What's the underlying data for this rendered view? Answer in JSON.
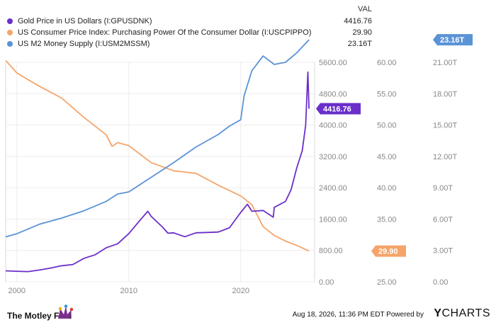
{
  "legend": {
    "header": "VAL",
    "items": [
      {
        "name": "Gold Price in US Dollars (I:GPUSDNK)",
        "value": "4416.76",
        "color": "#6a2fc9"
      },
      {
        "name": "US Consumer Price Index: Purchasing Power Of the Consumer Dollar (I:USCPIPPO)",
        "value": "29.90",
        "color": "#f5a46a"
      },
      {
        "name": "US M2 Money Supply (I:USM2MSSM)",
        "value": "23.16T",
        "color": "#5b93d6"
      }
    ]
  },
  "badges": {
    "gold": "4416.76",
    "cpi": "29.90",
    "m2": "23.16T"
  },
  "axes": {
    "gold": {
      "labels": [
        "0.00",
        "800.00",
        "1600.00",
        "2400.00",
        "3200.00",
        "4000.00",
        "4800.00",
        "5600.00"
      ],
      "values": [
        0,
        800,
        1600,
        2400,
        3200,
        4000,
        4800,
        5600
      ]
    },
    "cpi": {
      "labels": [
        "25.00",
        "30.00",
        "35.00",
        "40.00",
        "45.00",
        "50.00",
        "55.00",
        "60.00"
      ],
      "values": [
        25,
        30,
        35,
        40,
        45,
        50,
        55,
        60
      ]
    },
    "m2": {
      "labels": [
        "0.00",
        "3.00T",
        "6.00T",
        "9.00T",
        "12.00T",
        "15.00T",
        "18.00T",
        "21.00T"
      ],
      "values": [
        0,
        3,
        6,
        9,
        12,
        15,
        18,
        21
      ]
    },
    "x": {
      "labels": [
        "2000",
        "2010",
        "2020"
      ],
      "values": [
        2000,
        2010,
        2020
      ]
    }
  },
  "chart_data": {
    "type": "line",
    "grid": true,
    "legend_placement": "top-left",
    "xlim": [
      1999,
      2026.6
    ],
    "series": [
      {
        "name": "Gold Price in US Dollars (I:GPUSDNK)",
        "axis": "left",
        "ylim": [
          0,
          5600
        ],
        "color": "#6a2fc9",
        "x": [
          1999,
          2000,
          2001,
          2002,
          2003,
          2004,
          2005,
          2006,
          2007,
          2008,
          2009,
          2010,
          2011,
          2011.7,
          2012,
          2013,
          2013.5,
          2014,
          2015,
          2016,
          2017,
          2018,
          2019,
          2020,
          2020.6,
          2021,
          2022,
          2022.9,
          2023,
          2024,
          2024.5,
          2025,
          2025.5,
          2025.8,
          2026,
          2026.1
        ],
        "values": [
          280,
          270,
          260,
          300,
          350,
          410,
          440,
          600,
          690,
          870,
          970,
          1230,
          1570,
          1800,
          1670,
          1400,
          1240,
          1250,
          1150,
          1250,
          1260,
          1270,
          1380,
          1770,
          1980,
          1800,
          1820,
          1650,
          1900,
          2050,
          2350,
          2900,
          3350,
          4000,
          5350,
          4416.76
        ]
      },
      {
        "name": "US Consumer Price Index: Purchasing Power Of the Consumer Dollar (I:USCPIPPO)",
        "axis": "inner",
        "ylim": [
          25,
          60
        ],
        "color": "#f5a46a",
        "x": [
          1999,
          2000,
          2002,
          2004,
          2006,
          2008,
          2008.5,
          2009,
          2010,
          2012,
          2014,
          2016,
          2018,
          2020,
          2021,
          2022,
          2023,
          2024,
          2025,
          2026.1
        ],
        "values": [
          60.3,
          58.3,
          56.2,
          54.3,
          51.2,
          48.4,
          46.6,
          47.2,
          46.7,
          44.0,
          42.7,
          42.3,
          40.4,
          38.7,
          37.3,
          33.8,
          32.4,
          31.5,
          30.8,
          29.9
        ]
      },
      {
        "name": "US M2 Money Supply (I:USM2MSSM)",
        "axis": "outer",
        "ylim": [
          0,
          21
        ],
        "color": "#5b93d6",
        "x": [
          1999,
          2000,
          2002,
          2004,
          2006,
          2008,
          2009,
          2010,
          2012,
          2014,
          2016,
          2018,
          2019,
          2020,
          2020.3,
          2021,
          2022,
          2023,
          2024,
          2025,
          2026.1
        ],
        "values": [
          4.3,
          4.6,
          5.5,
          6.1,
          6.8,
          7.7,
          8.4,
          8.6,
          10.0,
          11.4,
          12.9,
          14.1,
          14.9,
          15.5,
          17.8,
          20.2,
          21.6,
          20.8,
          21.0,
          21.9,
          23.16
        ]
      }
    ]
  },
  "footer": {
    "brand": "The Motley Fool",
    "stamp": "Aug 18, 2026, 11:36 PM EDT Powered by",
    "ycharts_y": "Y",
    "ycharts_rest": "CHARTS"
  }
}
